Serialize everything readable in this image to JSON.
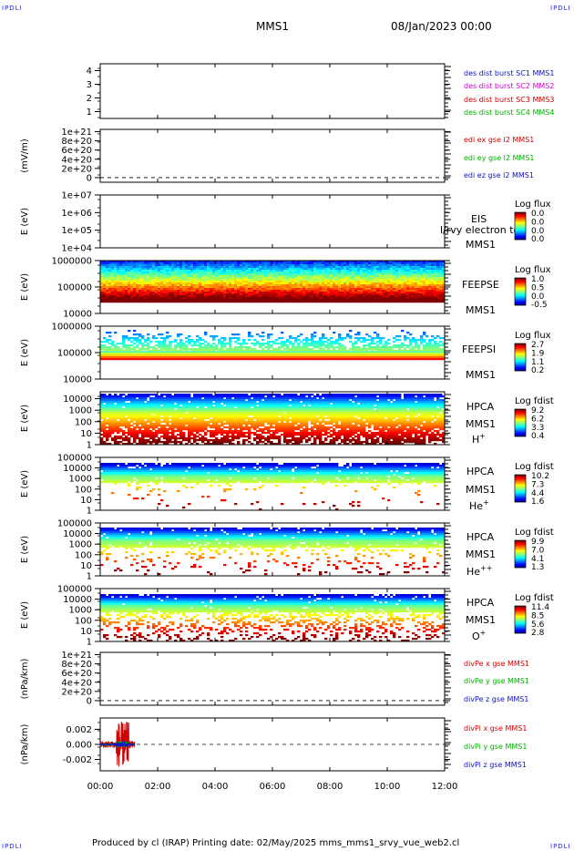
{
  "corner_label": "IPDLI",
  "header": {
    "mission": "MMS1",
    "date": "08/Jan/2023 00:00"
  },
  "footer": {
    "text": "Produced by cl (IRAP)   Printing date: 02/May/2025   mms_mms1_srvy_vue_web2.cl"
  },
  "time_axis": {
    "ticks": [
      "00:00",
      "02:00",
      "04:00",
      "06:00",
      "08:00",
      "10:00",
      "12:00"
    ],
    "range_hours": [
      0,
      12
    ]
  },
  "colors": {
    "blue": "#1010c8",
    "magenta": "#d000d0",
    "red": "#d00000",
    "green": "#00b000"
  },
  "chart_data": [
    {
      "type": "line",
      "panel": "dist",
      "ylabel": "",
      "ylim": [
        0.5,
        4.5
      ],
      "ytick_labels": [
        "4",
        "3",
        "2",
        "1"
      ],
      "yticks": [
        4,
        3,
        2,
        1
      ],
      "legend": [
        {
          "text": "des dist burst SC1 MMS1",
          "color": "#1010c8"
        },
        {
          "text": "des dist burst SC2 MMS2",
          "color": "#d000d0"
        },
        {
          "text": "des dist burst SC3 MMS3",
          "color": "#d00000"
        },
        {
          "text": "des dist burst SC4 MMS4",
          "color": "#00b000"
        }
      ],
      "series": []
    },
    {
      "type": "line",
      "panel": "edi",
      "ylabel": "(mV/m)",
      "ylim": [
        -1e+20,
        1.05e+21
      ],
      "ytick_labels": [
        "1e+21",
        "8e+20",
        "6e+20",
        "4e+20",
        "2e+20",
        "0"
      ],
      "yticks": [
        1e+21,
        8e+20,
        6e+20,
        4e+20,
        2e+20,
        0
      ],
      "zero_line": true,
      "legend": [
        {
          "text": "edi ex gse l2 MMS1",
          "color": "#d00000"
        },
        {
          "text": "edi ey gse l2 MMS1",
          "color": "#00b000"
        },
        {
          "text": "edi ez gse l2 MMS1",
          "color": "#1010c8"
        }
      ],
      "series": []
    },
    {
      "type": "heatmap",
      "panel": "eis",
      "ylabel": "E (eV)",
      "scale": "log",
      "ylim": [
        10000.0,
        10000000.0
      ],
      "ytick_labels": [
        "1e+07",
        "1e+06",
        "1e+05",
        "1e+04"
      ],
      "yticks": [
        10000000.0,
        1000000.0,
        100000.0,
        10000.0
      ],
      "name_lines": [
        "EIS",
        "MMS1"
      ],
      "overlay_text": "l/rvy electron to",
      "colorbar": {
        "title": "Log flux",
        "labels": [
          "0.0",
          "0.0",
          "0.0",
          "0.0"
        ]
      },
      "spectrogram": "none"
    },
    {
      "type": "heatmap",
      "panel": "feeps_e",
      "ylabel": "E (eV)",
      "scale": "log",
      "ylim": [
        10000.0,
        1000000.0
      ],
      "ytick_labels": [
        "1000000",
        "100000",
        "10000"
      ],
      "yticks": [
        1000000.0,
        100000.0,
        10000.0
      ],
      "name_lines": [
        "FEEPSE",
        "MMS1"
      ],
      "colorbar": {
        "title": "Log flux",
        "labels": [
          "1.0",
          "0.5",
          "0.0",
          "-0.5"
        ]
      },
      "spectrogram": "feepse"
    },
    {
      "type": "heatmap",
      "panel": "feeps_i",
      "ylabel": "E (eV)",
      "scale": "log",
      "ylim": [
        10000.0,
        1000000.0
      ],
      "ytick_labels": [
        "1000000",
        "100000",
        "10000"
      ],
      "yticks": [
        1000000.0,
        100000.0,
        10000.0
      ],
      "name_lines": [
        "FEEPSI",
        "MMS1"
      ],
      "colorbar": {
        "title": "Log flux",
        "labels": [
          "2.7",
          "1.9",
          "1.1",
          "0.2"
        ]
      },
      "spectrogram": "feepsi"
    },
    {
      "type": "heatmap",
      "panel": "hpca_h",
      "ylabel": "E (eV)",
      "scale": "log",
      "ylim": [
        1,
        40000.0
      ],
      "ytick_labels": [
        "10000",
        "1000",
        "100",
        "10",
        "1"
      ],
      "yticks": [
        10000.0,
        1000.0,
        100.0,
        10.0,
        1
      ],
      "name_lines": [
        "HPCA",
        "MMS1",
        "H+"
      ],
      "colorbar": {
        "title": "Log fdist",
        "labels": [
          "9.2",
          "6.2",
          "3.3",
          "0.4"
        ]
      },
      "spectrogram": "hpca_h"
    },
    {
      "type": "heatmap",
      "panel": "hpca_he",
      "ylabel": "E (eV)",
      "scale": "log",
      "ylim": [
        1,
        100000.0
      ],
      "ytick_labels": [
        "100000",
        "10000",
        "1000",
        "100",
        "10",
        "1"
      ],
      "yticks": [
        100000.0,
        10000.0,
        1000.0,
        100.0,
        10.0,
        1
      ],
      "name_lines": [
        "HPCA",
        "MMS1",
        "He+"
      ],
      "colorbar": {
        "title": "Log fdist",
        "labels": [
          "10.2",
          "7.3",
          "4.4",
          "1.6"
        ]
      },
      "spectrogram": "hpca_he"
    },
    {
      "type": "heatmap",
      "panel": "hpca_he2",
      "ylabel": "E (eV)",
      "scale": "log",
      "ylim": [
        1,
        100000.0
      ],
      "ytick_labels": [
        "100000",
        "10000",
        "1000",
        "100",
        "10",
        "1"
      ],
      "yticks": [
        100000.0,
        10000.0,
        1000.0,
        100.0,
        10.0,
        1
      ],
      "name_lines": [
        "HPCA",
        "MMS1",
        "He++"
      ],
      "colorbar": {
        "title": "Log fdist",
        "labels": [
          "9.9",
          "7.0",
          "4.1",
          "1.3"
        ]
      },
      "spectrogram": "hpca_he2"
    },
    {
      "type": "heatmap",
      "panel": "hpca_o",
      "ylabel": "E (eV)",
      "scale": "log",
      "ylim": [
        1,
        100000.0
      ],
      "ytick_labels": [
        "100000",
        "10000",
        "1000",
        "100",
        "10",
        "1"
      ],
      "yticks": [
        100000.0,
        10000.0,
        1000.0,
        100.0,
        10.0,
        1
      ],
      "name_lines": [
        "HPCA",
        "MMS1",
        "O+"
      ],
      "colorbar": {
        "title": "Log fdist",
        "labels": [
          "11.4",
          "8.5",
          "5.6",
          "2.8"
        ]
      },
      "spectrogram": "hpca_o"
    },
    {
      "type": "line",
      "panel": "divpe",
      "ylabel": "(nPa/km)",
      "ylim": [
        -1e+20,
        1.05e+21
      ],
      "ytick_labels": [
        "1e+21",
        "8e+20",
        "6e+20",
        "4e+20",
        "2e+20",
        "0"
      ],
      "yticks": [
        1e+21,
        8e+20,
        6e+20,
        4e+20,
        2e+20,
        0
      ],
      "zero_line": true,
      "legend": [
        {
          "text": "divPe x gse MMS1",
          "color": "#d00000"
        },
        {
          "text": "divPe y gse MMS1",
          "color": "#00b000"
        },
        {
          "text": "divPe z gse MMS1",
          "color": "#1010c8"
        }
      ],
      "series": []
    },
    {
      "type": "line",
      "panel": "divpi",
      "ylabel": "(nPa/km)",
      "ylim": [
        -0.0035,
        0.0035
      ],
      "ytick_labels": [
        "0.002",
        "0.000",
        "-0.002"
      ],
      "yticks": [
        0.002,
        0,
        -0.002
      ],
      "zero_line": true,
      "legend": [
        {
          "text": "divPi x gse MMS1",
          "color": "#d00000"
        },
        {
          "text": "divPi y gse MMS1",
          "color": "#00b000"
        },
        {
          "text": "divPi z gse MMS1",
          "color": "#1010c8"
        }
      ],
      "series": [
        {
          "name": "divPi x gse MMS1",
          "color": "#d00000",
          "x_range": [
            0.0,
            1.2
          ],
          "amplitude": 0.003
        },
        {
          "name": "divPi y gse MMS1",
          "color": "#00b000",
          "x_range": [
            0.0,
            1.2
          ],
          "amplitude": 0.0004
        },
        {
          "name": "divPi z gse MMS1",
          "color": "#1010c8",
          "x_range": [
            0.0,
            1.2
          ],
          "amplitude": 0.0003
        }
      ]
    }
  ]
}
